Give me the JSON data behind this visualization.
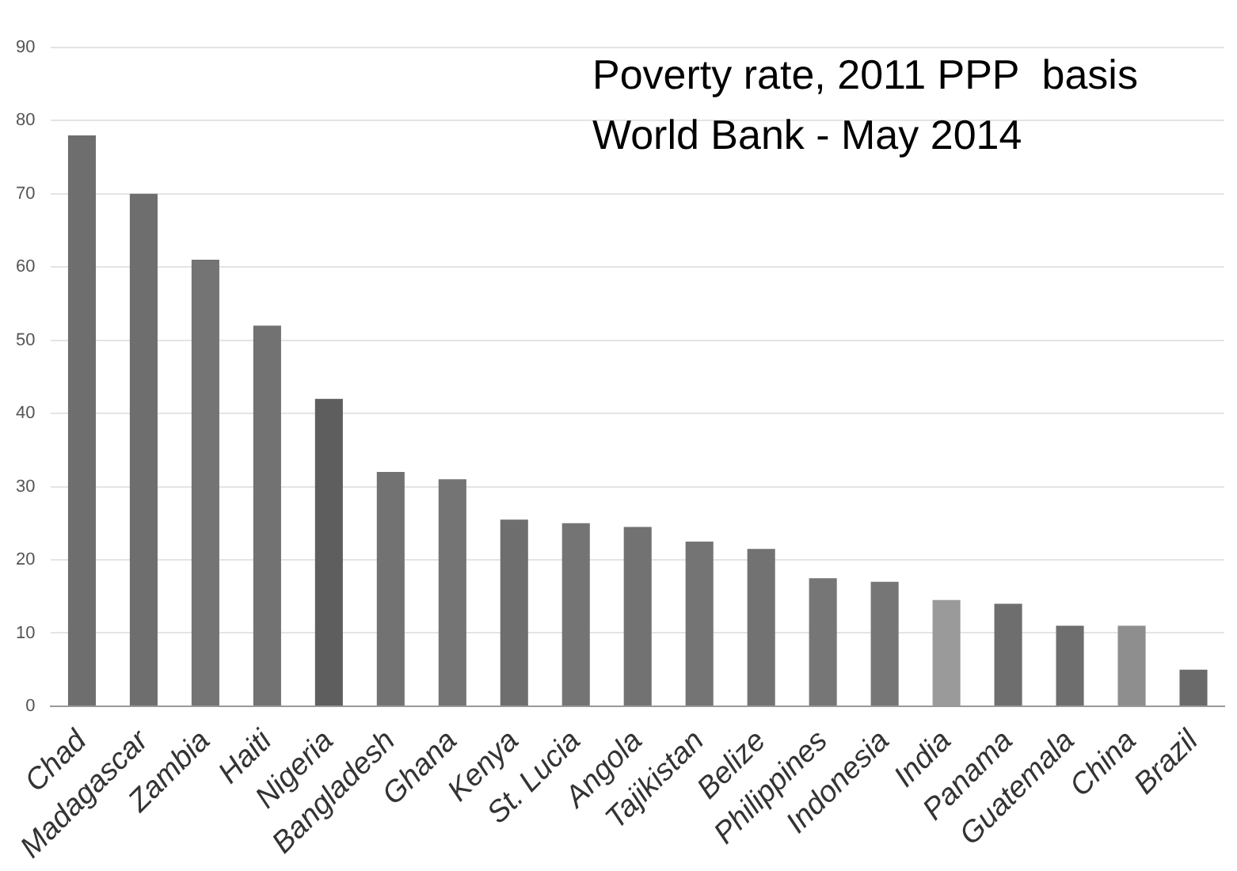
{
  "chart_data": {
    "type": "bar",
    "title": "Poverty rate, 2011 PPP  basis",
    "subtitle": "World Bank - May 2014",
    "categories": [
      "Chad",
      "Madagascar",
      "Zambia",
      "Haiti",
      "Nigeria",
      "Bangladesh",
      "Ghana",
      "Kenya",
      "St. Lucia",
      "Angola",
      "Tajikistan",
      "Belize",
      "Philippines",
      "Indonesia",
      "India",
      "Panama",
      "Guatemala",
      "China",
      "Brazil"
    ],
    "values": [
      78,
      70,
      61,
      52,
      42,
      32,
      31,
      25.5,
      25,
      24.5,
      22.5,
      21.5,
      17.5,
      17,
      14.5,
      14,
      11,
      11,
      5
    ],
    "colors": [
      "#6e6e6e",
      "#6e6e6e",
      "#747474",
      "#727272",
      "#5e5e5e",
      "#727272",
      "#747474",
      "#6e6e6e",
      "#747474",
      "#727272",
      "#747474",
      "#727272",
      "#767676",
      "#767676",
      "#9a9a9a",
      "#6e6e6e",
      "#6e6e6e",
      "#8e8e8e",
      "#6a6a6a"
    ],
    "ylim": [
      0,
      90
    ],
    "yticks": [
      0,
      10,
      20,
      30,
      40,
      50,
      60,
      70,
      80,
      90
    ],
    "grid": "y"
  }
}
